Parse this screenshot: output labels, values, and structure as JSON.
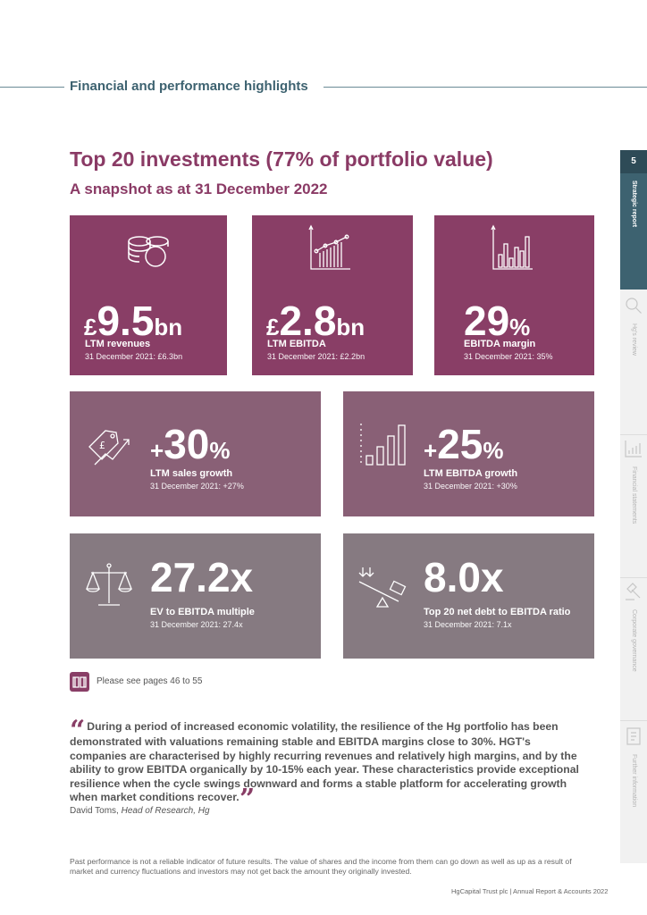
{
  "section_title": "Financial and performance highlights",
  "title": "Top 20 investments (77% of portfolio value)",
  "subtitle": "A snapshot as at 31 December 2022",
  "tiles": [
    {
      "prefix": "£",
      "value": "9.5",
      "suffix": "bn",
      "label": "LTM revenues",
      "comparison": "31 December 2021: £6.3bn",
      "icon": "coins-icon"
    },
    {
      "prefix": "£",
      "value": "2.8",
      "suffix": "bn",
      "label": "LTM EBITDA",
      "comparison": "31 December 2021: £2.2bn",
      "icon": "line-chart-icon"
    },
    {
      "prefix": "",
      "value": "29",
      "suffix": "%",
      "label": "EBITDA margin",
      "comparison": "31 December 2021: 35%",
      "icon": "bar-chart-icon"
    },
    {
      "prefix": "+",
      "value": "30",
      "suffix": "%",
      "label": "LTM sales growth",
      "comparison": "31 December 2021: +27%",
      "icon": "price-tag-growth-icon"
    },
    {
      "prefix": "+",
      "value": "25",
      "suffix": "%",
      "label": "LTM EBITDA growth",
      "comparison": "31 December 2021: +30%",
      "icon": "rising-bars-icon"
    },
    {
      "prefix": "",
      "value": "27.2x",
      "suffix": "",
      "label": "EV to EBITDA multiple",
      "comparison": "31 December 2021: 27.4x",
      "icon": "scales-icon"
    },
    {
      "prefix": "",
      "value": "8.0x",
      "suffix": "",
      "label": "Top 20 net debt to EBITDA ratio",
      "comparison": "31 December 2021: 7.1x",
      "icon": "seesaw-icon"
    }
  ],
  "reference": "Please see pages 46 to 55",
  "quote": "During a period of increased economic volatility, the resilience of the Hg portfolio has been demonstrated with valuations remaining stable and EBITDA margins close to 30%. HGT's companies are characterised by highly recurring revenues and relatively high margins, and by the ability to grow EBITDA organically by 10-15% each year. These characteristics provide exceptional resilience when the cycle swings downward and forms a stable platform for accelerating growth when market conditions recover.",
  "attribution": {
    "name": "David Toms, ",
    "role": "Head of Research, Hg"
  },
  "disclaimer": "Past performance is not a reliable indicator of future results. The value of shares and the income from them can go down as well as up as a result of market and currency fluctuations and investors may not get back the amount they originally invested.",
  "footer": "HgCapital Trust plc  |  Annual Report & Accounts 2022",
  "sidebar": {
    "page_number": "5",
    "sections": [
      "Strategic report",
      "Hg's review",
      "Financial statements",
      "Corporate governance",
      "Further information"
    ]
  },
  "colors": {
    "plum": "#893e66",
    "mauve": "#896076",
    "grey": "#867a81",
    "teal": "#3d6270"
  }
}
